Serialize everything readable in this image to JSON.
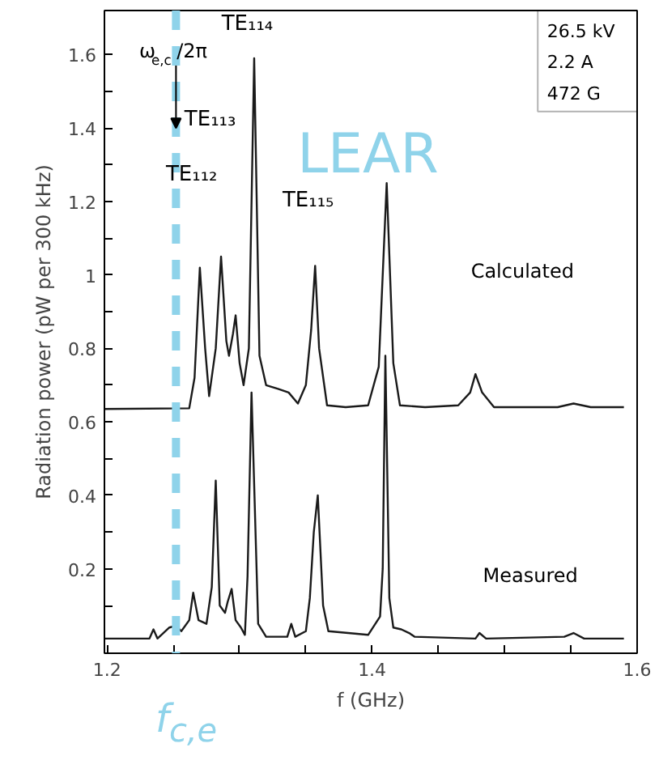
{
  "chart_data": {
    "type": "line",
    "xlabel": "f (GHz)",
    "ylabel": "Radiation power (pW per 300 kHz)",
    "xlim": [
      1.198,
      1.6
    ],
    "ylim": [
      -0.03,
      1.72
    ],
    "xticks": [
      1.2,
      {
        "value": 1.25,
        "label": null
      },
      {
        "value": 1.3,
        "label": null
      },
      {
        "value": 1.35,
        "label": null
      },
      1.4,
      {
        "value": 1.45,
        "label": null
      },
      {
        "value": 1.5,
        "label": null
      },
      {
        "value": 1.55,
        "label": null
      },
      1.6
    ],
    "yticks": [
      {
        "value": 0.1,
        "label": null
      },
      0.2,
      {
        "value": 0.3,
        "label": null
      },
      0.4,
      {
        "value": 0.5,
        "label": null
      },
      0.6,
      {
        "value": 0.7,
        "label": null
      },
      0.8,
      {
        "value": 0.9,
        "label": null
      },
      1.0,
      {
        "value": 1.1,
        "label": null
      },
      1.2,
      {
        "value": 1.3,
        "label": null
      },
      1.4,
      {
        "value": 1.5,
        "label": null
      },
      1.6
    ],
    "grid": false,
    "marker": "none",
    "line_style": "solid",
    "series": [
      {
        "color": "#1a1a1a",
        "x": [
          1.198,
          1.262,
          1.266,
          1.27,
          1.274,
          1.277,
          1.282,
          1.286,
          1.29,
          1.292,
          1.295,
          1.297,
          1.3,
          1.303,
          1.307,
          1.311,
          1.315,
          1.32,
          1.329,
          1.337,
          1.344,
          1.35,
          1.354,
          1.357,
          1.36,
          1.366,
          1.38,
          1.397,
          1.405,
          1.411,
          1.416,
          1.421,
          1.44,
          1.465,
          1.474,
          1.478,
          1.483,
          1.492,
          1.54,
          1.552,
          1.565,
          1.59
        ],
        "values": [
          0.635,
          0.637,
          0.72,
          1.02,
          0.8,
          0.67,
          0.8,
          1.05,
          0.82,
          0.78,
          0.84,
          0.89,
          0.76,
          0.7,
          0.8,
          1.59,
          0.78,
          0.7,
          0.69,
          0.68,
          0.65,
          0.7,
          0.85,
          1.025,
          0.8,
          0.645,
          0.64,
          0.645,
          0.75,
          1.25,
          0.76,
          0.645,
          0.64,
          0.645,
          0.68,
          0.73,
          0.68,
          0.64,
          0.64,
          0.65,
          0.64,
          0.64
        ]
      },
      {
        "color": "#1a1a1a",
        "x": [
          1.198,
          1.232,
          1.235,
          1.238,
          1.247,
          1.252,
          1.256,
          1.262,
          1.265,
          1.269,
          1.275,
          1.279,
          1.282,
          1.285,
          1.289,
          1.291,
          1.294,
          1.297,
          1.301,
          1.304,
          1.306,
          1.309,
          1.314,
          1.32,
          1.336,
          1.339,
          1.342,
          1.35,
          1.353,
          1.356,
          1.359,
          1.363,
          1.367,
          1.397,
          1.406,
          1.408,
          1.41,
          1.413,
          1.416,
          1.422,
          1.428,
          1.432,
          1.478,
          1.481,
          1.486,
          1.545,
          1.552,
          1.56,
          1.59
        ],
        "values": [
          0.01,
          0.01,
          0.035,
          0.01,
          0.04,
          0.045,
          0.03,
          0.06,
          0.135,
          0.06,
          0.05,
          0.15,
          0.44,
          0.1,
          0.08,
          0.11,
          0.145,
          0.06,
          0.04,
          0.02,
          0.18,
          0.68,
          0.05,
          0.015,
          0.015,
          0.05,
          0.015,
          0.03,
          0.12,
          0.3,
          0.4,
          0.1,
          0.03,
          0.02,
          0.07,
          0.2,
          0.78,
          0.12,
          0.04,
          0.035,
          0.025,
          0.015,
          0.01,
          0.025,
          0.01,
          0.015,
          0.025,
          0.01,
          0.01
        ]
      }
    ],
    "ref_lines": [
      {
        "axis": "x",
        "value": 1.252,
        "label": "f$_{c,e}$",
        "color": "#8fd3ea",
        "line_style": "dashed"
      }
    ],
    "annotations": [
      {
        "text": "ω$_{e,c}$/2π",
        "x": 1.252,
        "y": 1.4
      },
      "TE₁₁₂",
      "TE₁₁₃",
      "TE₁₁₄",
      "TE₁₁₅",
      "Calculated",
      "Measured",
      "LEAR",
      "26.5 kV",
      "2.2 A",
      "472 G"
    ]
  }
}
